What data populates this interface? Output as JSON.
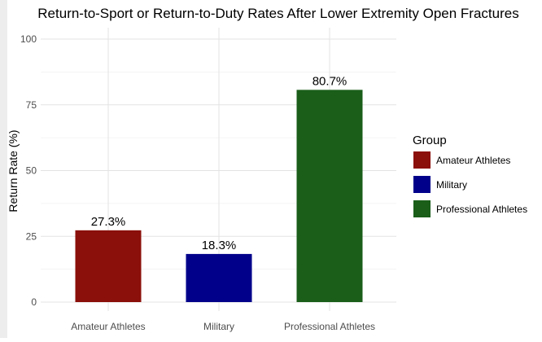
{
  "chart_data": {
    "type": "bar",
    "title": "Return-to-Sport or Return-to-Duty Rates After Lower Extremity Open Fractures",
    "xlabel": "",
    "ylabel": "Return Rate (%)",
    "ylim": [
      0,
      100
    ],
    "yticks": [
      0,
      25,
      50,
      75,
      100
    ],
    "grid": true,
    "categories": [
      "Amateur Athletes",
      "Military",
      "Professional Athletes"
    ],
    "values": [
      27.3,
      18.3,
      80.7
    ],
    "data_labels": [
      "27.3%",
      "18.3%",
      "80.7%"
    ],
    "colors": [
      "#8b0f0a",
      "#00008b",
      "#1a5e1a"
    ],
    "legend": {
      "title": "Group",
      "position": "right",
      "items": [
        {
          "label": "Amateur Athletes",
          "color": "#8b0f0a"
        },
        {
          "label": "Military",
          "color": "#00008b"
        },
        {
          "label": "Professional Athletes",
          "color": "#1a5e1a"
        }
      ]
    }
  }
}
